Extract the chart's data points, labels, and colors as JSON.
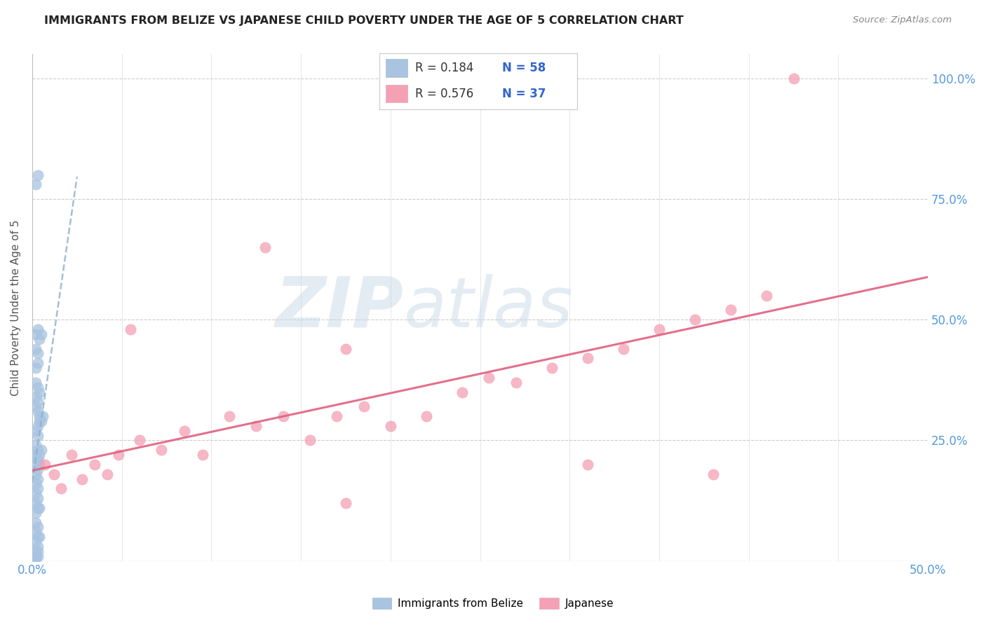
{
  "title": "IMMIGRANTS FROM BELIZE VS JAPANESE CHILD POVERTY UNDER THE AGE OF 5 CORRELATION CHART",
  "source": "Source: ZipAtlas.com",
  "ylabel": "Child Poverty Under the Age of 5",
  "xlim": [
    0.0,
    0.5
  ],
  "ylim": [
    0.0,
    1.05
  ],
  "ytick_vals": [
    0.0,
    0.25,
    0.5,
    0.75,
    1.0
  ],
  "ytick_labels": [
    "",
    "25.0%",
    "50.0%",
    "75.0%",
    "100.0%"
  ],
  "xtick_vals": [
    0.0,
    0.05,
    0.1,
    0.15,
    0.2,
    0.25,
    0.3,
    0.35,
    0.4,
    0.45,
    0.5
  ],
  "xtick_labels": [
    "0.0%",
    "",
    "",
    "",
    "",
    "",
    "",
    "",
    "",
    "",
    "50.0%"
  ],
  "legend_label1": "Immigrants from Belize",
  "legend_label2": "Japanese",
  "R1": 0.184,
  "N1": 58,
  "R2": 0.576,
  "N2": 37,
  "color1": "#a8c4e0",
  "color2": "#f4a0b5",
  "trendline1_color": "#5588bb",
  "trendline2_color": "#e06080",
  "watermark_zip": "ZIP",
  "watermark_atlas": "atlas",
  "belize_x": [
    0.002,
    0.003,
    0.002,
    0.003,
    0.004,
    0.005,
    0.002,
    0.003,
    0.002,
    0.003,
    0.002,
    0.003,
    0.002,
    0.003,
    0.004,
    0.002,
    0.003,
    0.004,
    0.005,
    0.006,
    0.003,
    0.004,
    0.002,
    0.003,
    0.002,
    0.003,
    0.004,
    0.005,
    0.002,
    0.003,
    0.004,
    0.002,
    0.003,
    0.002,
    0.003,
    0.002,
    0.003,
    0.002,
    0.003,
    0.002,
    0.003,
    0.004,
    0.002,
    0.002,
    0.003,
    0.002,
    0.003,
    0.002,
    0.003,
    0.004,
    0.002,
    0.003,
    0.002,
    0.003,
    0.002,
    0.003,
    0.002,
    0.002
  ],
  "belize_y": [
    0.78,
    0.8,
    0.47,
    0.48,
    0.46,
    0.47,
    0.44,
    0.43,
    0.4,
    0.41,
    0.37,
    0.36,
    0.34,
    0.33,
    0.35,
    0.32,
    0.31,
    0.3,
    0.29,
    0.3,
    0.28,
    0.29,
    0.27,
    0.26,
    0.24,
    0.23,
    0.22,
    0.23,
    0.22,
    0.21,
    0.2,
    0.2,
    0.19,
    0.18,
    0.17,
    0.16,
    0.15,
    0.14,
    0.13,
    0.12,
    0.11,
    0.11,
    0.1,
    0.22,
    0.21,
    0.08,
    0.07,
    0.06,
    0.05,
    0.05,
    0.04,
    0.03,
    0.02,
    0.02,
    0.01,
    0.01,
    0.009,
    0.005
  ],
  "japanese_x": [
    0.007,
    0.012,
    0.016,
    0.022,
    0.028,
    0.035,
    0.042,
    0.048,
    0.06,
    0.072,
    0.085,
    0.095,
    0.11,
    0.125,
    0.14,
    0.155,
    0.17,
    0.185,
    0.2,
    0.22,
    0.24,
    0.255,
    0.27,
    0.29,
    0.31,
    0.33,
    0.35,
    0.37,
    0.39,
    0.41,
    0.425,
    0.055,
    0.13,
    0.175,
    0.31,
    0.38,
    0.175
  ],
  "japanese_y": [
    0.2,
    0.18,
    0.15,
    0.22,
    0.17,
    0.2,
    0.18,
    0.22,
    0.25,
    0.23,
    0.27,
    0.22,
    0.3,
    0.28,
    0.3,
    0.25,
    0.3,
    0.32,
    0.28,
    0.3,
    0.35,
    0.38,
    0.37,
    0.4,
    0.42,
    0.44,
    0.48,
    0.5,
    0.52,
    0.55,
    1.0,
    0.48,
    0.65,
    0.44,
    0.2,
    0.18,
    0.12
  ],
  "trendline1_x0": 0.0,
  "trendline1_x1": 0.025,
  "trendline2_x0": 0.0,
  "trendline2_x1": 0.5
}
